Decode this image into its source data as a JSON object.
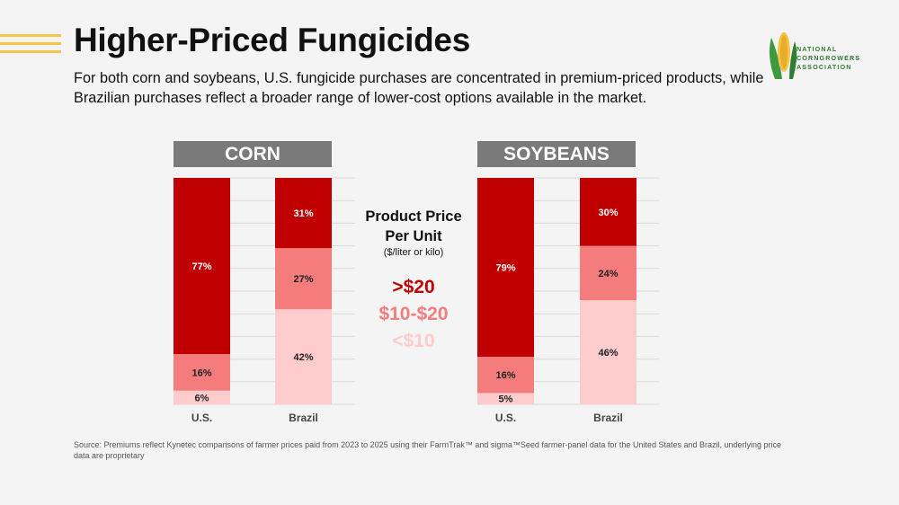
{
  "slide": {
    "title": "Higher-Priced Fungicides",
    "subtitle": "For both corn and soybeans, U.S. fungicide purchases are concentrated in premium-priced products, while Brazilian purchases reflect a broader range of lower-cost options available in the market.",
    "logo_lines": [
      "NATIONAL",
      "CORNGROWERS",
      "ASSOCIATION"
    ],
    "source": "Source: Premiums reflect Kynetec comparisons of farmer prices paid from 2023 to 2025 using their FarmTrak™ and sigma™Seed farmer-panel data for the United States and Brazil, underlying price data are proprietary"
  },
  "legend": {
    "title_line1": "Product Price",
    "title_line2": "Per Unit",
    "unit": "($/liter or kilo)",
    "items": [
      {
        "label": ">$20",
        "color": "#c00000"
      },
      {
        "label": "$10-$20",
        "color": "#f47c7c"
      },
      {
        "label": "<$10",
        "color": "#fecccc"
      }
    ]
  },
  "chart_data": [
    {
      "type": "bar",
      "stacked": true,
      "title": "CORN",
      "categories": [
        "U.S.",
        "Brazil"
      ],
      "ylim": [
        0,
        100
      ],
      "series": [
        {
          "name": "<$10",
          "color": "#fecccc",
          "values": [
            6,
            42
          ]
        },
        {
          "name": "$10-$20",
          "color": "#f47c7c",
          "values": [
            16,
            27
          ]
        },
        {
          "name": ">$20",
          "color": "#c00000",
          "values": [
            77,
            31
          ]
        }
      ],
      "labels": [
        [
          "6%",
          "16%",
          "77%"
        ],
        [
          "42%",
          "27%",
          "31%"
        ]
      ]
    },
    {
      "type": "bar",
      "stacked": true,
      "title": "SOYBEANS",
      "categories": [
        "U.S.",
        "Brazil"
      ],
      "ylim": [
        0,
        100
      ],
      "series": [
        {
          "name": "<$10",
          "color": "#fecccc",
          "values": [
            5,
            46
          ]
        },
        {
          "name": "$10-$20",
          "color": "#f47c7c",
          "values": [
            16,
            24
          ]
        },
        {
          "name": ">$20",
          "color": "#c00000",
          "values": [
            79,
            30
          ]
        }
      ],
      "labels": [
        [
          "5%",
          "16%",
          "79%"
        ],
        [
          "46%",
          "24%",
          "30%"
        ]
      ]
    }
  ]
}
